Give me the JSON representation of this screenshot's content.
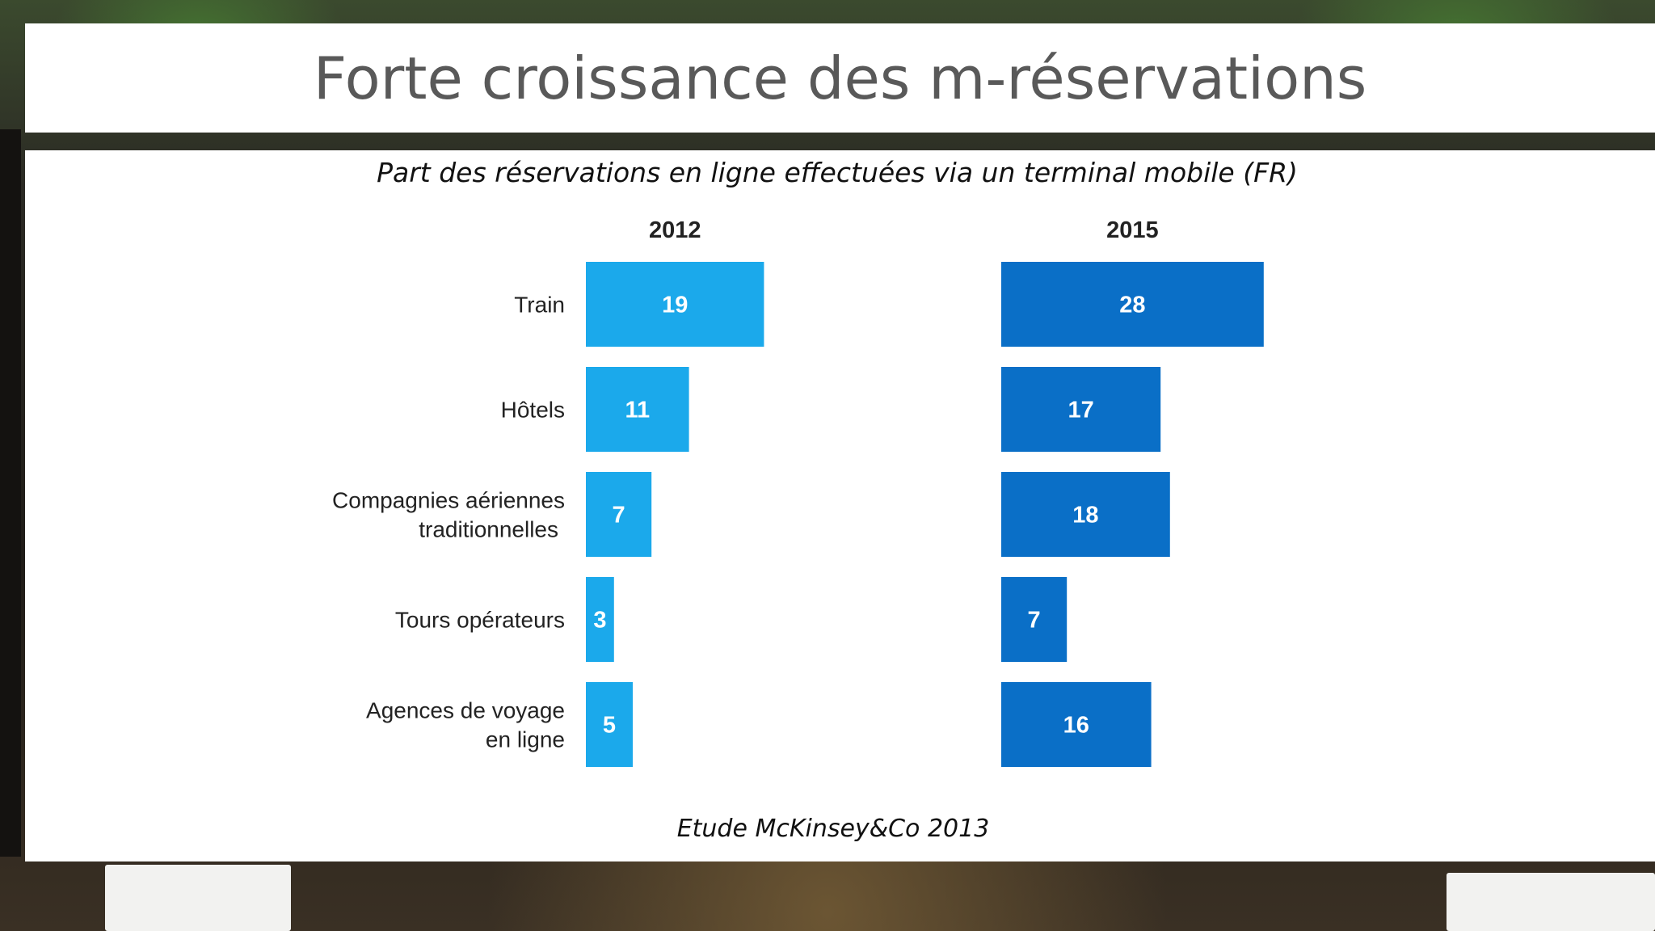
{
  "slide": {
    "title": "Forte croissance des m-réservations",
    "subtitle": "Part des réservations en ligne effectuées via un terminal mobile (FR)",
    "source": "Etude McKinsey&Co 2013"
  },
  "chart_data": {
    "type": "bar",
    "orientation": "horizontal",
    "title": "Part des réservations en ligne effectuées via un terminal mobile (FR)",
    "categories": [
      [
        "Train"
      ],
      [
        "Hôtels"
      ],
      [
        "Compagnies aériennes",
        "traditionnelles"
      ],
      [
        "Tours opérateurs"
      ],
      [
        "Agences de voyage",
        "en ligne"
      ]
    ],
    "series": [
      {
        "name": "2012",
        "values": [
          19,
          11,
          7,
          3,
          5
        ],
        "color": "#1ba9eb"
      },
      {
        "name": "2015",
        "values": [
          28,
          17,
          18,
          7,
          16
        ],
        "color": "#0a6fc7"
      }
    ],
    "data_labels": true,
    "grid": false,
    "label_color": "#ffffff"
  }
}
